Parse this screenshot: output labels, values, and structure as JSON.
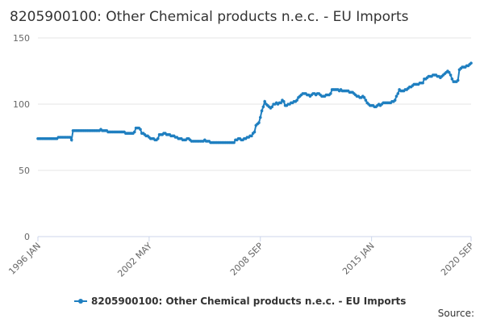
{
  "chart_data": {
    "type": "line",
    "title": "8205900100: Other Chemical products n.e.c. - EU Imports",
    "source": "Source:",
    "x": [
      "1996-01",
      "1996-02",
      "1996-03",
      "1996-04",
      "1996-05",
      "1996-06",
      "1996-07",
      "1996-08",
      "1996-09",
      "1996-10",
      "1996-11",
      "1996-12",
      "1997-01",
      "1997-02",
      "1997-03",
      "1997-04",
      "1997-05",
      "1997-06",
      "1997-07",
      "1997-08",
      "1997-09",
      "1997-10",
      "1997-11",
      "1997-12",
      "1998-01",
      "1998-02",
      "1998-03",
      "1998-04",
      "1998-05",
      "1998-06",
      "1998-07",
      "1998-08",
      "1998-09",
      "1998-10",
      "1998-11",
      "1998-12",
      "1999-01",
      "1999-02",
      "1999-03",
      "1999-04",
      "1999-05",
      "1999-06",
      "1999-07",
      "1999-08",
      "1999-09",
      "1999-10",
      "1999-11",
      "1999-12",
      "2000-01",
      "2000-02",
      "2000-03",
      "2000-04",
      "2000-05",
      "2000-06",
      "2000-07",
      "2000-08",
      "2000-09",
      "2000-10",
      "2000-11",
      "2000-12",
      "2001-01",
      "2001-02",
      "2001-03",
      "2001-04",
      "2001-05",
      "2001-06",
      "2001-07",
      "2001-08",
      "2001-09",
      "2001-10",
      "2001-11",
      "2001-12",
      "2002-01",
      "2002-02",
      "2002-03",
      "2002-04",
      "2002-05",
      "2002-06",
      "2002-07",
      "2002-08",
      "2002-09",
      "2002-10",
      "2002-11",
      "2002-12",
      "2003-01",
      "2003-02",
      "2003-03",
      "2003-04",
      "2003-05",
      "2003-06",
      "2003-07",
      "2003-08",
      "2003-09",
      "2003-10",
      "2003-11",
      "2003-12",
      "2004-01",
      "2004-02",
      "2004-03",
      "2004-04",
      "2004-05",
      "2004-06",
      "2004-07",
      "2004-08",
      "2004-09",
      "2004-10",
      "2004-11",
      "2004-12",
      "2005-01",
      "2005-02",
      "2005-03",
      "2005-04",
      "2005-05",
      "2005-06",
      "2005-07",
      "2005-08",
      "2005-09",
      "2005-10",
      "2005-11",
      "2005-12",
      "2006-01",
      "2006-02",
      "2006-03",
      "2006-04",
      "2006-05",
      "2006-06",
      "2006-07",
      "2006-08",
      "2006-09",
      "2006-10",
      "2006-11",
      "2006-12",
      "2007-01",
      "2007-02",
      "2007-03",
      "2007-04",
      "2007-05",
      "2007-06",
      "2007-07",
      "2007-08",
      "2007-09",
      "2007-10",
      "2007-11",
      "2007-12",
      "2008-01",
      "2008-02",
      "2008-03",
      "2008-04",
      "2008-05",
      "2008-06",
      "2008-07",
      "2008-08",
      "2008-09",
      "2008-10",
      "2008-11",
      "2008-12",
      "2009-01",
      "2009-02",
      "2009-03",
      "2009-04",
      "2009-05",
      "2009-06",
      "2009-07",
      "2009-08",
      "2009-09",
      "2009-10",
      "2009-11",
      "2009-12",
      "2010-01",
      "2010-02",
      "2010-03",
      "2010-04",
      "2010-05",
      "2010-06",
      "2010-07",
      "2010-08",
      "2010-09",
      "2010-10",
      "2010-11",
      "2010-12",
      "2011-01",
      "2011-02",
      "2011-03",
      "2011-04",
      "2011-05",
      "2011-06",
      "2011-07",
      "2011-08",
      "2011-09",
      "2011-10",
      "2011-11",
      "2011-12",
      "2012-01",
      "2012-02",
      "2012-03",
      "2012-04",
      "2012-05",
      "2012-06",
      "2012-07",
      "2012-08",
      "2012-09",
      "2012-10",
      "2012-11",
      "2012-12",
      "2013-01",
      "2013-02",
      "2013-03",
      "2013-04",
      "2013-05",
      "2013-06",
      "2013-07",
      "2013-08",
      "2013-09",
      "2013-10",
      "2013-11",
      "2013-12",
      "2014-01",
      "2014-02",
      "2014-03",
      "2014-04",
      "2014-05",
      "2014-06",
      "2014-07",
      "2014-08",
      "2014-09",
      "2014-10",
      "2014-11",
      "2014-12",
      "2015-01",
      "2015-02",
      "2015-03",
      "2015-04",
      "2015-05",
      "2015-06",
      "2015-07",
      "2015-08",
      "2015-09",
      "2015-10",
      "2015-11",
      "2015-12",
      "2016-01",
      "2016-02",
      "2016-03",
      "2016-04",
      "2016-05",
      "2016-06",
      "2016-07",
      "2016-08",
      "2016-09",
      "2016-10",
      "2016-11",
      "2016-12",
      "2017-01",
      "2017-02",
      "2017-03",
      "2017-04",
      "2017-05",
      "2017-06",
      "2017-07",
      "2017-08",
      "2017-09",
      "2017-10",
      "2017-11",
      "2017-12",
      "2018-01",
      "2018-02",
      "2018-03",
      "2018-04",
      "2018-05",
      "2018-06",
      "2018-07",
      "2018-08",
      "2018-09",
      "2018-10",
      "2018-11",
      "2018-12",
      "2019-01",
      "2019-02",
      "2019-03",
      "2019-04",
      "2019-05",
      "2019-06",
      "2019-07",
      "2019-08",
      "2019-09",
      "2019-10",
      "2019-11",
      "2019-12",
      "2020-01",
      "2020-02",
      "2020-03",
      "2020-04",
      "2020-05",
      "2020-06",
      "2020-07",
      "2020-08",
      "2020-09"
    ],
    "series": [
      {
        "name": "8205900100: Other Chemical products n.e.c. - EU Imports",
        "color": "#1f7fc0",
        "values": [
          74,
          74,
          74,
          74,
          74,
          74,
          74,
          74,
          74,
          74,
          74,
          74,
          74,
          74,
          75,
          75,
          75,
          75,
          75,
          75,
          75,
          75,
          75,
          73,
          80,
          80,
          80,
          80,
          80,
          80,
          80,
          80,
          80,
          80,
          80,
          80,
          80,
          80,
          80,
          80,
          80,
          80,
          80,
          81,
          80,
          80,
          80,
          80,
          79,
          79,
          79,
          79,
          79,
          79,
          79,
          79,
          79,
          79,
          79,
          79,
          78,
          78,
          78,
          78,
          78,
          78,
          79,
          82,
          82,
          82,
          81,
          78,
          78,
          77,
          76,
          76,
          75,
          74,
          74,
          74,
          73,
          73,
          74,
          77,
          77,
          77,
          78,
          78,
          77,
          77,
          77,
          76,
          76,
          76,
          75,
          75,
          74,
          74,
          74,
          73,
          73,
          73,
          74,
          74,
          73,
          72,
          72,
          72,
          72,
          72,
          72,
          72,
          72,
          72,
          73,
          72,
          72,
          72,
          71,
          71,
          71,
          71,
          71,
          71,
          71,
          71,
          71,
          71,
          71,
          71,
          71,
          71,
          71,
          71,
          71,
          73,
          73,
          74,
          74,
          73,
          73,
          74,
          74,
          75,
          75,
          76,
          76,
          78,
          79,
          84,
          85,
          86,
          90,
          95,
          98,
          102,
          100,
          99,
          98,
          97,
          98,
          100,
          100,
          101,
          100,
          101,
          101,
          103,
          102,
          99,
          99,
          100,
          100,
          101,
          101,
          102,
          102,
          103,
          105,
          106,
          107,
          108,
          108,
          108,
          107,
          107,
          106,
          107,
          108,
          108,
          107,
          108,
          108,
          107,
          106,
          106,
          106,
          107,
          107,
          107,
          108,
          111,
          111,
          111,
          111,
          111,
          110,
          111,
          110,
          110,
          110,
          110,
          110,
          109,
          109,
          109,
          108,
          107,
          106,
          106,
          105,
          105,
          106,
          105,
          103,
          101,
          100,
          99,
          99,
          99,
          98,
          98,
          99,
          100,
          99,
          100,
          101,
          101,
          101,
          101,
          101,
          101,
          102,
          102,
          103,
          106,
          108,
          111,
          110,
          110,
          110,
          111,
          111,
          112,
          113,
          113,
          114,
          115,
          115,
          115,
          115,
          116,
          116,
          116,
          119,
          119,
          120,
          121,
          121,
          121,
          122,
          122,
          122,
          121,
          121,
          120,
          121,
          122,
          123,
          124,
          125,
          124,
          122,
          119,
          117,
          117,
          117,
          118,
          126,
          127,
          128,
          128,
          128,
          129,
          129,
          130,
          131
        ]
      }
    ],
    "xlim": [
      "1996-01",
      "2020-09"
    ],
    "xticks": [
      {
        "value": "1996-01",
        "label": "1996 JAN"
      },
      {
        "value": "2002-05",
        "label": "2002 MAY"
      },
      {
        "value": "2008-09",
        "label": "2008 SEP"
      },
      {
        "value": "2015-01",
        "label": "2015 JAN"
      },
      {
        "value": "2020-09",
        "label": "2020 SEP"
      }
    ],
    "ylim": [
      0,
      150
    ],
    "yticks": [
      0,
      50,
      100,
      150
    ],
    "grid": true
  }
}
